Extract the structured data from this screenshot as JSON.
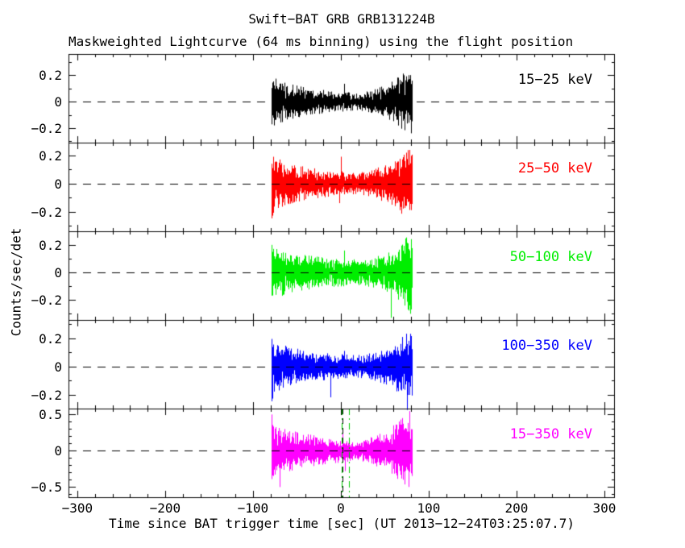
{
  "title": "Swift−BAT GRB GRB131224B",
  "subtitle": "Maskweighted Lightcurve (64 ms binning) using the flight position",
  "axes": {
    "xlabel": "Time since BAT trigger time [sec] (UT 2013−12−24T03:25:07.7)",
    "ylabel": "Counts/sec/det",
    "xlim": [
      -310,
      312
    ],
    "xticks": [
      -300,
      -200,
      -100,
      0,
      100,
      200,
      300
    ],
    "xtick_labels": [
      "−300",
      "−200",
      "−100",
      "0",
      "100",
      "200",
      "300"
    ],
    "x_minor_step": 20
  },
  "chart_data": {
    "type": "line",
    "description": "Five stacked mask-weighted BAT lightcurve panels, noise-dominated rate vs time; event data span about T−80 s to T+82 s with amplitude envelope pinching near the trigger",
    "binning": "64 ms",
    "x_range_sec": [
      -79.5,
      81.5
    ],
    "zero_line": {
      "style": "dashed",
      "color": "#000000"
    },
    "panels": [
      {
        "label": "15−25 keV",
        "color": "#000000",
        "ylim": [
          -0.31,
          0.36
        ],
        "yticks": [
          0.2,
          0,
          -0.2
        ],
        "ytick_labels": [
          "0.2",
          "0",
          "−0.2"
        ],
        "y_minor_step": 0.1,
        "envelope": [
          [
            -80,
            0.25
          ],
          [
            -76,
            0.17
          ],
          [
            -60,
            0.13
          ],
          [
            -40,
            0.1
          ],
          [
            -15,
            0.08
          ],
          [
            5,
            0.07
          ],
          [
            18,
            0.06
          ],
          [
            35,
            0.08
          ],
          [
            55,
            0.13
          ],
          [
            70,
            0.2
          ],
          [
            78,
            0.25
          ],
          [
            82,
            0.22
          ]
        ],
        "spikes": [
          [
            4,
            0.135
          ]
        ]
      },
      {
        "label": "25−50 keV",
        "color": "#ff0000",
        "ylim": [
          -0.34,
          0.29
        ],
        "yticks": [
          0.2,
          0,
          -0.2
        ],
        "ytick_labels": [
          "0.2",
          "0",
          "−0.2"
        ],
        "y_minor_step": 0.1,
        "envelope": [
          [
            -80,
            0.26
          ],
          [
            -76,
            0.18
          ],
          [
            -60,
            0.14
          ],
          [
            -40,
            0.11
          ],
          [
            -15,
            0.09
          ],
          [
            5,
            0.08
          ],
          [
            18,
            0.07
          ],
          [
            35,
            0.09
          ],
          [
            55,
            0.14
          ],
          [
            70,
            0.21
          ],
          [
            78,
            0.26
          ],
          [
            82,
            0.23
          ]
        ],
        "spikes": [
          [
            0,
            0.19
          ],
          [
            -2,
            -0.14
          ]
        ]
      },
      {
        "label": "50−100 keV",
        "color": "#00ee00",
        "ylim": [
          -0.345,
          0.3
        ],
        "yticks": [
          0.2,
          0,
          -0.2
        ],
        "ytick_labels": [
          "0.2",
          "0",
          "−0.2"
        ],
        "y_minor_step": 0.1,
        "envelope": [
          [
            -80,
            0.27
          ],
          [
            -76,
            0.19
          ],
          [
            -60,
            0.14
          ],
          [
            -40,
            0.12
          ],
          [
            -15,
            0.1
          ],
          [
            5,
            0.095
          ],
          [
            18,
            0.09
          ],
          [
            35,
            0.1
          ],
          [
            55,
            0.14
          ],
          [
            70,
            0.21
          ],
          [
            78,
            0.27
          ],
          [
            82,
            0.24
          ]
        ],
        "spikes": [
          [
            4,
            0.16
          ],
          [
            57,
            -0.33
          ],
          [
            79,
            -0.3
          ]
        ]
      },
      {
        "label": "100−350 keV",
        "color": "#0000ff",
        "ylim": [
          -0.3,
          0.33
        ],
        "yticks": [
          0.2,
          0,
          -0.2
        ],
        "ytick_labels": [
          "0.2",
          "0",
          "−0.2"
        ],
        "y_minor_step": 0.1,
        "envelope": [
          [
            -80,
            0.26
          ],
          [
            -76,
            0.18
          ],
          [
            -60,
            0.13
          ],
          [
            -40,
            0.11
          ],
          [
            -15,
            0.09
          ],
          [
            5,
            0.08
          ],
          [
            18,
            0.075
          ],
          [
            35,
            0.09
          ],
          [
            55,
            0.13
          ],
          [
            70,
            0.2
          ],
          [
            78,
            0.26
          ],
          [
            82,
            0.23
          ]
        ],
        "spikes": [
          [
            4,
            0.11
          ],
          [
            75,
            -0.31
          ],
          [
            -12,
            -0.22
          ]
        ]
      },
      {
        "label": "15−350 keV",
        "color": "#ff00ff",
        "ylim": [
          -0.64,
          0.58
        ],
        "yticks": [
          0.5,
          0,
          -0.5
        ],
        "ytick_labels": [
          "0.5",
          "0",
          "−0.5"
        ],
        "y_minor_step": 0.1,
        "envelope": [
          [
            -80,
            0.52
          ],
          [
            -76,
            0.37
          ],
          [
            -60,
            0.27
          ],
          [
            -40,
            0.22
          ],
          [
            -15,
            0.17
          ],
          [
            5,
            0.15
          ],
          [
            18,
            0.13
          ],
          [
            35,
            0.18
          ],
          [
            55,
            0.27
          ],
          [
            70,
            0.43
          ],
          [
            78,
            0.52
          ],
          [
            82,
            0.46
          ]
        ],
        "spikes": [
          [
            2,
            0.3
          ],
          [
            5,
            -0.28
          ],
          [
            60,
            0.35
          ],
          [
            -70,
            -0.5
          ]
        ],
        "markers": {
          "green_dashdot_t": [
            1,
            9
          ],
          "black_dashed_t": 2.2,
          "color": "#00cc00"
        }
      }
    ]
  }
}
